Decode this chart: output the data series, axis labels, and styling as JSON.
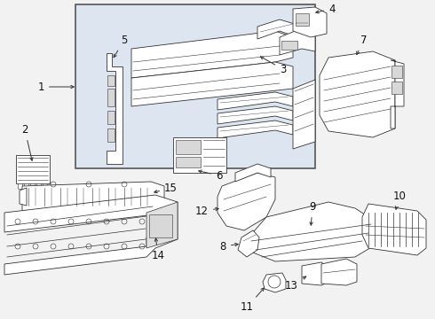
{
  "bg_color": "#f2f2f2",
  "box_fill": "#dde6f0",
  "box_edge": "#444444",
  "part_fill": "#ffffff",
  "part_edge": "#333333",
  "label_color": "#111111",
  "arrow_color": "#333333",
  "label_fs": 7.5,
  "lw": 0.6,
  "fig_w": 4.9,
  "fig_h": 3.6,
  "dpi": 100
}
